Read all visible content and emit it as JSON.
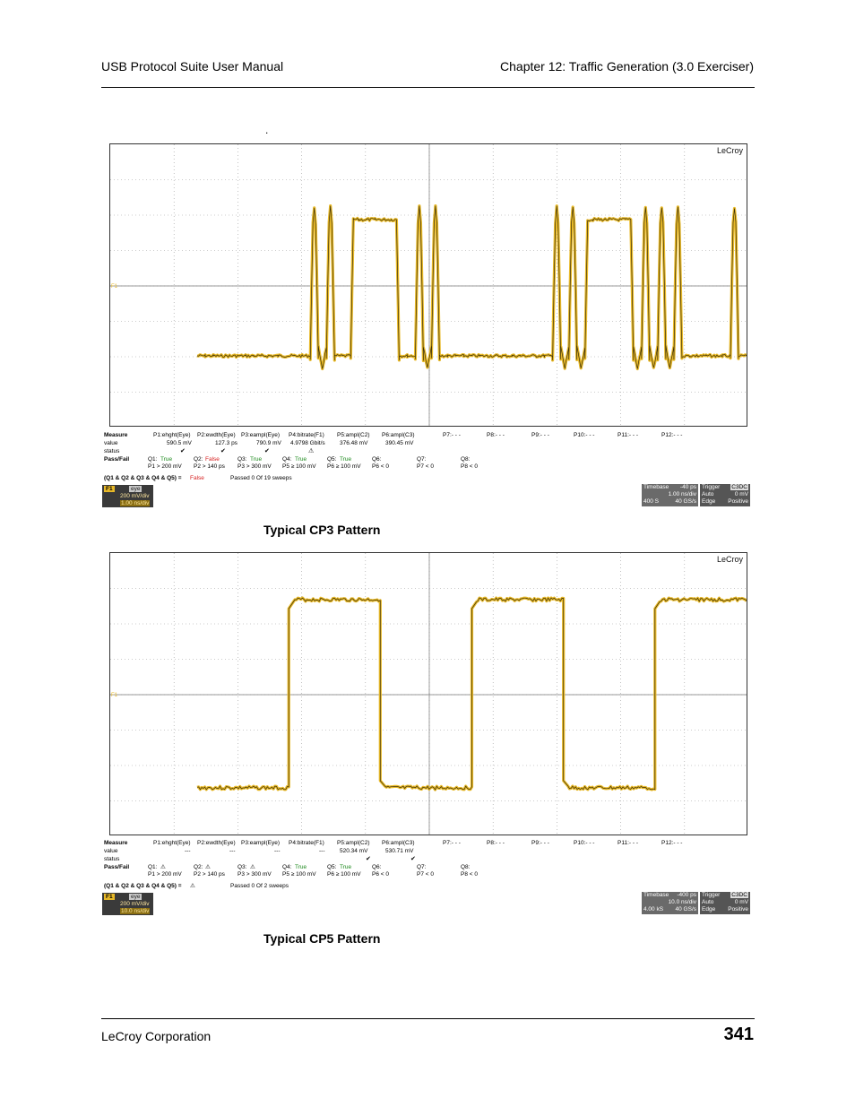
{
  "header": {
    "left": "USB Protocol Suite User Manual",
    "right": "Chapter 12: Traffic Generation (3.0 Exerciser)"
  },
  "intro_dot": ".",
  "scopes": [
    {
      "brand": "LeCroy",
      "channel_marker": "F1",
      "caption": "Typical CP3 Pattern",
      "measure": {
        "title": "Measure",
        "headers": [
          "P1:ehght(Eye)",
          "P2:ewdth(Eye)",
          "P3:eampl(Eye)",
          "P4:bitrate(F1)",
          "P5:ampl(C2)",
          "P6:ampl(C3)",
          "P7:- - -",
          "P8:- - -",
          "P9:- - -",
          "P10:- - -",
          "P11:- - -",
          "P12:- - -"
        ],
        "value_label": "value",
        "values": [
          "590.5 mV",
          "127.3 ps",
          "790.9 mV",
          "4.9798 Gbit/s",
          "376.48 mV",
          "390.45 mV"
        ],
        "status_label": "status",
        "status": [
          "✔",
          "✔",
          "✔",
          "⚠",
          "",
          ""
        ],
        "passfail_label": "Pass/Fail",
        "q_labels": [
          "Q1:",
          "Q2:",
          "Q3:",
          "Q4:",
          "Q5:",
          "Q6:",
          "Q7:",
          "Q8:"
        ],
        "q_results": [
          "True",
          "False",
          "True",
          "True",
          "True",
          "",
          "",
          ""
        ],
        "conditions": [
          "P1 > 200 mV",
          "P2 > 140 ps",
          "P3 > 300 mV",
          "P5 ≥ 100 mV",
          "P6 ≥ 100 mV",
          "P6 < 0",
          "P7 < 0",
          "P8 < 0"
        ],
        "summary_label": "(Q1 & Q2 & Q3 & Q4 & Q5) =",
        "summary_value": "False",
        "passed_text": "Passed  0   Of  19   sweeps"
      },
      "channel_box": {
        "tag": "F1",
        "tag2": "eye",
        "line1": "200 mV/div",
        "line2": "1.00 ns/div"
      },
      "timebase_box": {
        "label": "Timebase",
        "delay": "-40 ps",
        "rate": "1.00 ns/div",
        "samples": "400 S",
        "sr": "40 GS/s"
      },
      "trigger_box": {
        "label": "Trigger",
        "mode_tag": "C3DC",
        "mode": "Auto",
        "level": "0 mV",
        "type": "Edge",
        "slope": "Positive"
      }
    },
    {
      "brand": "LeCroy",
      "channel_marker": "F1",
      "caption": "Typical CP5 Pattern",
      "measure": {
        "title": "Measure",
        "headers": [
          "P1:ehght(Eye)",
          "P2:ewdth(Eye)",
          "P3:eampl(Eye)",
          "P4:bitrate(F1)",
          "P5:ampl(C2)",
          "P6:ampl(C3)",
          "P7:- - -",
          "P8:- - -",
          "P9:- - -",
          "P10:- - -",
          "P11:- - -",
          "P12:- - -"
        ],
        "value_label": "value",
        "values": [
          "---",
          "---",
          "---",
          "---",
          "520.34 mV",
          "530.71 mV"
        ],
        "status_label": "status",
        "status": [
          "",
          "",
          "",
          "",
          "✔",
          "✔"
        ],
        "passfail_label": "Pass/Fail",
        "q_labels": [
          "Q1:",
          "Q2:",
          "Q3:",
          "Q4:",
          "Q5:",
          "Q6:",
          "Q7:",
          "Q8:"
        ],
        "q_results": [
          "⚠",
          "⚠",
          "⚠",
          "True",
          "True",
          "",
          "",
          ""
        ],
        "conditions": [
          "P1 > 200 mV",
          "P2 > 140 ps",
          "P3 > 300 mV",
          "P5 ≥ 100 mV",
          "P6 ≥ 100 mV",
          "P6 < 0",
          "P7 < 0",
          "P8 < 0"
        ],
        "summary_label": "(Q1 & Q2 & Q3 & Q4 & Q5) =",
        "summary_value": "⚠",
        "passed_text": "Passed  0   Of  2   sweeps"
      },
      "channel_box": {
        "tag": "F1",
        "tag2": "eye",
        "line1": "200 mV/div",
        "line2": "10.0 ns/div"
      },
      "timebase_box": {
        "label": "Timebase",
        "delay": "-400 ps",
        "rate": "10.0 ns/div",
        "samples": "4.00 kS",
        "sr": "40 GS/s"
      },
      "trigger_box": {
        "label": "Trigger",
        "mode_tag": "C3DC",
        "mode": "Auto",
        "level": "0 mV",
        "type": "Edge",
        "slope": "Positive"
      }
    }
  ],
  "footer": {
    "left": "LeCroy Corporation",
    "page": "341"
  },
  "colors": {
    "trace": "#e8b928",
    "trace_dark": "#3b2f0a",
    "grid": "#9a9a9a"
  },
  "waveforms": {
    "cp3_levels": [
      0,
      0,
      0,
      0,
      0,
      0,
      0,
      0,
      0,
      0,
      0,
      0,
      0,
      0,
      1,
      0,
      1,
      0,
      0,
      1,
      1,
      1,
      1,
      1,
      1,
      0,
      0,
      1,
      0,
      1,
      0,
      0,
      0,
      0,
      0,
      0,
      0,
      0,
      0,
      0,
      0,
      0,
      0,
      0,
      1,
      0,
      1,
      0,
      1,
      1,
      1,
      1,
      1,
      1,
      0,
      1,
      0,
      1,
      0,
      1,
      0,
      0,
      0,
      0,
      0,
      0,
      1,
      0
    ],
    "cp5_levels": [
      0,
      1,
      0,
      1,
      0,
      1
    ]
  }
}
